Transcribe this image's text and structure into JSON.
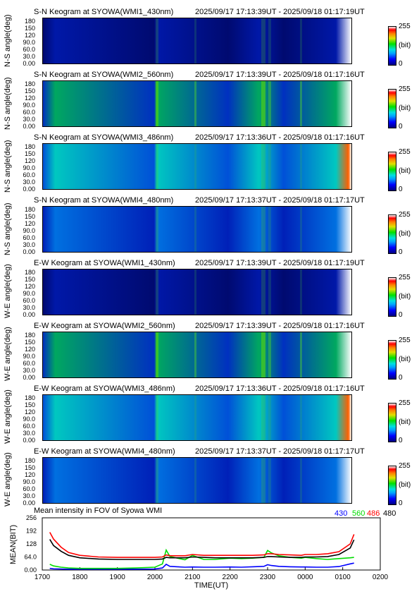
{
  "panels": [
    {
      "title": "S-N Keogram at SYOWA(WMI1_430nm)",
      "time_range": "2025/09/17 17:13:39UT - 2025/09/18 01:17:19UT",
      "ylabel": "N-S angle(deg)",
      "color": "dark",
      "bright": "low"
    },
    {
      "title": "S-N Keogram at SYOWA(WMI2_560nm)",
      "time_range": "2025/09/17 17:13:39UT - 2025/09/18 01:17:16UT",
      "ylabel": "N-S angle(deg)",
      "color": "green",
      "bright": "mid"
    },
    {
      "title": "S-N Keogram at SYOWA(WMI3_486nm)",
      "time_range": "2025/09/17 17:13:36UT - 2025/09/18 01:17:16UT",
      "ylabel": "N-S angle(deg)",
      "color": "cyan",
      "bright": "high"
    },
    {
      "title": "S-N Keogram at SYOWA(WMI4_480nm)",
      "time_range": "2025/09/17 17:13:37UT - 2025/09/18 01:17:17UT",
      "ylabel": "N-S angle(deg)",
      "color": "blue",
      "bright": "mid"
    },
    {
      "title": "E-W Keogram at SYOWA(WMI1_430nm)",
      "time_range": "2025/09/17 17:13:39UT - 2025/09/18 01:17:19UT",
      "ylabel": "W-E angle(deg)",
      "color": "dark",
      "bright": "low"
    },
    {
      "title": "E-W Keogram at SYOWA(WMI2_560nm)",
      "time_range": "2025/09/17 17:13:39UT - 2025/09/18 01:17:16UT",
      "ylabel": "W-E angle(deg)",
      "color": "green",
      "bright": "mid"
    },
    {
      "title": "E-W Keogram at SYOWA(WMI3_486nm)",
      "time_range": "2025/09/17 17:13:36UT - 2025/09/18 01:17:16UT",
      "ylabel": "W-E angle(deg)",
      "color": "cyan",
      "bright": "high"
    },
    {
      "title": "E-W Keogram at SYOWA(WMI4_480nm)",
      "time_range": "2025/09/17 17:13:37UT - 2025/09/18 01:17:17UT",
      "ylabel": "W-E angle(deg)",
      "color": "blue",
      "bright": "mid"
    }
  ],
  "y_ticks": [
    "180",
    "150",
    "120",
    "90.0",
    "60.0",
    "30.0",
    "0.00"
  ],
  "colorbar": {
    "max": "255",
    "unit": "(bit)",
    "min": "0"
  },
  "chart_data": {
    "type": "line",
    "title": "Mean intensity in FOV of Syowa WMI",
    "ylabel": "MEAN(BIT)",
    "xlabel": "TIME(UT)",
    "x_ticks": [
      "1700",
      "1800",
      "1900",
      "2000",
      "2100",
      "2200",
      "2300",
      "0000",
      "0100",
      "0200"
    ],
    "y_ticks": [
      "256",
      "192",
      "128",
      "64.0",
      "0.00"
    ],
    "ylim": [
      0,
      256
    ],
    "xlim_hours": [
      17,
      26
    ],
    "x": [
      17.2,
      17.3,
      17.5,
      17.7,
      18,
      18.5,
      19,
      19.5,
      20,
      20.2,
      20.3,
      20.4,
      20.6,
      20.8,
      21,
      21.3,
      21.6,
      22,
      22.3,
      22.6,
      22.9,
      23,
      23.1,
      23.3,
      23.6,
      23.9,
      24,
      24.3,
      24.6,
      24.9,
      25.2,
      25.3
    ],
    "series": [
      {
        "name": "430",
        "color": "#0000ff",
        "values": [
          8,
          6,
          5,
          4,
          4,
          4,
          4,
          4,
          5,
          10,
          28,
          18,
          16,
          14,
          15,
          14,
          14,
          15,
          14,
          16,
          18,
          26,
          22,
          18,
          16,
          15,
          15,
          14,
          14,
          17,
          30,
          34
        ]
      },
      {
        "name": "560",
        "color": "#00dd00",
        "values": [
          28,
          20,
          14,
          10,
          8,
          8,
          8,
          10,
          14,
          30,
          98,
          66,
          58,
          50,
          72,
          52,
          52,
          58,
          56,
          58,
          62,
          96,
          84,
          70,
          62,
          58,
          62,
          56,
          52,
          56,
          60,
          62
        ]
      },
      {
        "name": "486",
        "color": "#ff0000",
        "values": [
          185,
          152,
          112,
          86,
          72,
          64,
          62,
          62,
          62,
          64,
          74,
          70,
          70,
          70,
          76,
          72,
          72,
          72,
          72,
          72,
          74,
          80,
          80,
          76,
          74,
          72,
          76,
          76,
          80,
          90,
          128,
          175
        ]
      },
      {
        "name": "480",
        "color": "#000000",
        "values": [
          150,
          120,
          92,
          72,
          60,
          54,
          52,
          52,
          52,
          54,
          62,
          60,
          60,
          60,
          64,
          62,
          60,
          60,
          60,
          60,
          62,
          66,
          66,
          64,
          62,
          62,
          64,
          64,
          66,
          76,
          108,
          148
        ]
      }
    ]
  }
}
